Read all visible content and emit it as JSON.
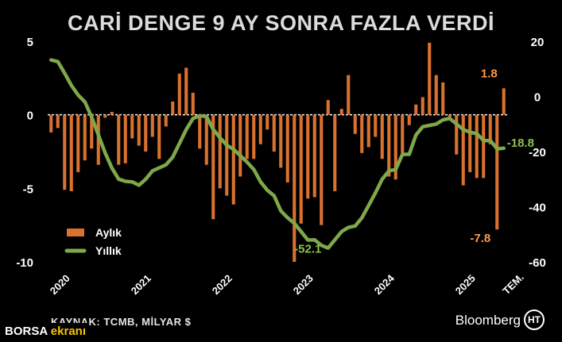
{
  "title": "CARİ DENGE 9 AY SONRA FAZLA VERDİ",
  "source": "KAYNAK: TCMB, MİLYAR $",
  "brand": "Bloomberg",
  "brand_mark": "HT",
  "watermark": {
    "part1": "BORSA",
    "part2": "ekranı"
  },
  "chart_data": {
    "type": "bar+line",
    "title": "CARİ DENGE 9 AY SONRA FAZLA VERDİ",
    "x_tick_labels": [
      "2020",
      "2021",
      "2022",
      "2023",
      "2024",
      "2025",
      "TEM."
    ],
    "x_tick_positions": [
      0,
      12,
      24,
      36,
      48,
      60,
      67
    ],
    "left_axis": {
      "ticks": [
        5,
        0,
        -5,
        -10
      ],
      "range": [
        -10,
        5
      ]
    },
    "right_axis": {
      "ticks": [
        20,
        0,
        -20,
        -40,
        -60
      ],
      "range": [
        -60,
        20
      ]
    },
    "series": [
      {
        "name": "Aylık",
        "type": "bar",
        "axis": "left",
        "color": "#d9722f",
        "x": [
          0,
          1,
          2,
          3,
          4,
          5,
          6,
          7,
          8,
          9,
          10,
          11,
          12,
          13,
          14,
          15,
          16,
          17,
          18,
          19,
          20,
          21,
          22,
          23,
          24,
          25,
          26,
          27,
          28,
          29,
          30,
          31,
          32,
          33,
          34,
          35,
          36,
          37,
          38,
          39,
          40,
          41,
          42,
          43,
          44,
          45,
          46,
          47,
          48,
          49,
          50,
          51,
          52,
          53,
          54,
          55,
          56,
          57,
          58,
          59,
          60,
          61,
          62,
          63,
          64,
          65,
          66,
          67
        ],
        "values": [
          -1.2,
          -0.9,
          -5.1,
          -5.2,
          -3.9,
          -3.1,
          -2.3,
          -3.4,
          -0.2,
          0.2,
          -3.4,
          -3.3,
          -1.6,
          -2.1,
          -2.5,
          -1.5,
          -3.0,
          -0.8,
          0.9,
          2.8,
          3.2,
          1.5,
          -2.3,
          -3.4,
          -7.1,
          -5.0,
          -5.5,
          -6.1,
          -4.2,
          -3.0,
          -3.0,
          -2.0,
          -1.0,
          -2.5,
          -3.6,
          -4.6,
          -10.0,
          -7.4,
          -5.7,
          -5.6,
          -7.5,
          1.0,
          -5.2,
          0.4,
          2.7,
          -1.3,
          -2.6,
          -2.2,
          -1.5,
          -3.0,
          -4.2,
          -4.4,
          -2.6,
          -0.7,
          0.7,
          1.2,
          4.9,
          2.7,
          2.2,
          -0.3,
          -2.7,
          -4.8,
          -3.9,
          -4.3,
          -4.3,
          -2.0,
          -7.8,
          1.8
        ]
      },
      {
        "name": "Yıllık",
        "type": "line",
        "axis": "right",
        "color": "#7fa84a",
        "x": [
          0,
          1,
          2,
          3,
          4,
          5,
          6,
          7,
          8,
          9,
          10,
          11,
          12,
          13,
          14,
          15,
          16,
          17,
          18,
          19,
          20,
          21,
          22,
          23,
          24,
          25,
          26,
          27,
          28,
          29,
          30,
          31,
          32,
          33,
          34,
          35,
          36,
          37,
          38,
          39,
          40,
          41,
          42,
          43,
          44,
          45,
          46,
          47,
          48,
          49,
          50,
          51,
          52,
          53,
          54,
          55,
          56,
          57,
          58,
          59,
          60,
          61,
          62,
          63,
          64,
          65,
          66,
          67
        ],
        "values": [
          13.2,
          12.6,
          8.4,
          4.0,
          0.5,
          -2.0,
          -7.5,
          -14.0,
          -20.5,
          -26.0,
          -30.0,
          -30.8,
          -31.0,
          -32.2,
          -30.0,
          -27.0,
          -25.9,
          -24.8,
          -22.0,
          -17.0,
          -12.0,
          -8.0,
          -7.0,
          -7.3,
          -12.0,
          -15.0,
          -17.7,
          -19.2,
          -21.5,
          -23.8,
          -26.5,
          -31.0,
          -34.0,
          -36.0,
          -41.5,
          -44.0,
          -46.0,
          -49.0,
          -52.1,
          -52.0,
          -54.0,
          -55.0,
          -52.0,
          -49.0,
          -47.5,
          -47.0,
          -44.0,
          -39.5,
          -35.0,
          -30.0,
          -27.0,
          -26.5,
          -21.0,
          -21.0,
          -14.0,
          -11.0,
          -10.5,
          -10.0,
          -8.5,
          -8.0,
          -10.0,
          -12.0,
          -13.0,
          -13.5,
          -16.0,
          -16.0,
          -19.0,
          -18.8
        ]
      }
    ],
    "annotations": [
      {
        "text": "1.8",
        "series": "Aylık",
        "x": 67,
        "value": 1.8,
        "color": "#ff9a4d"
      },
      {
        "text": "-7.8",
        "series": "Aylık",
        "x": 66,
        "value": -7.8,
        "color": "#ff9a4d"
      },
      {
        "text": "-18.8",
        "series": "Yıllık",
        "x": 67,
        "value": -18.8,
        "color": "#8cc04f"
      },
      {
        "text": "-52.1",
        "series": "Yıllık",
        "x": 38,
        "value": -52.1,
        "color": "#8cc04f"
      }
    ],
    "legend": {
      "placement": "lower-left",
      "entries": [
        "Aylık",
        "Yıllık"
      ]
    },
    "grid": false
  }
}
